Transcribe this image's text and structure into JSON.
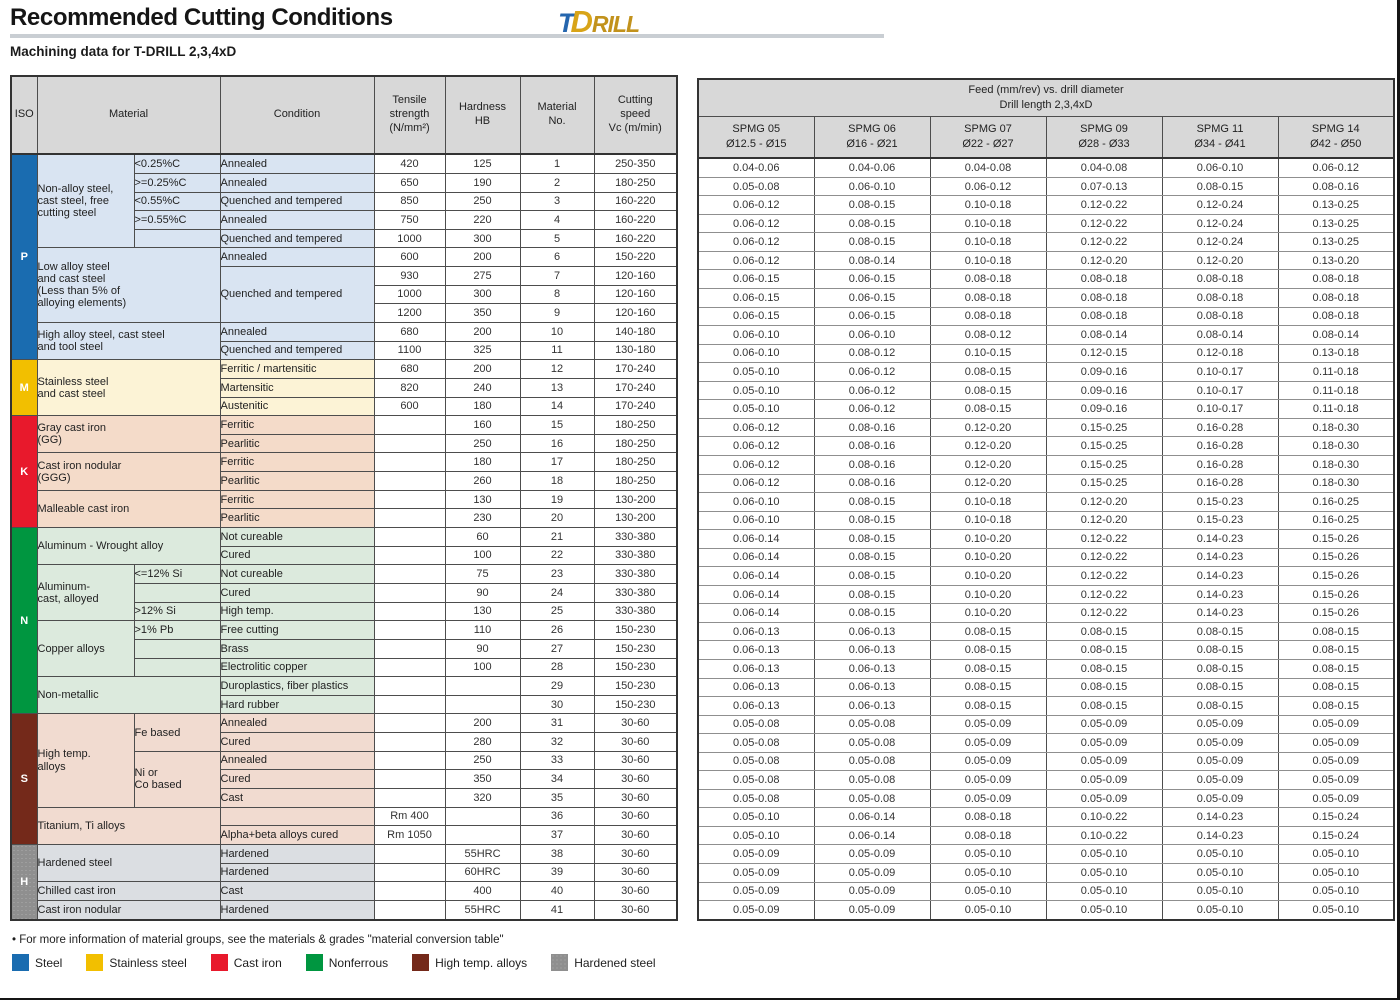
{
  "page": {
    "title": "Recommended Cutting Conditions",
    "subtitle": "Machining data for T-DRILL 2,3,4xD",
    "logo": {
      "t": "T",
      "d": "D",
      "rill": "RILL"
    },
    "footnote": "• For more information of material groups, see the materials & grades \"material conversion table\"",
    "legend": [
      {
        "label": "Steel",
        "color": "#1a6cb0"
      },
      {
        "label": "Stainless steel",
        "color": "#f2bf00"
      },
      {
        "label": "Cast iron",
        "color": "#e8192c"
      },
      {
        "label": "Nonferrous",
        "color": "#009640"
      },
      {
        "label": "High temp. alloys",
        "color": "#74291a"
      },
      {
        "label": "Hardened steel",
        "color": "#8f8f8f"
      }
    ]
  },
  "left_table": {
    "headers": {
      "iso": "ISO",
      "material": "Material",
      "condition": "Condition",
      "tensile": "Tensile\nstrength\n(N/mm²)",
      "hardness": "Hardness\nHB",
      "material_no": "Material\nNo.",
      "cutting_speed": "Cutting\nspeed\nVc (m/min)"
    },
    "sections": [
      {
        "iso": "P",
        "color": "#1a6cb0",
        "bg": "#d9e4f2",
        "groups": [
          {
            "name": "Non-alloy steel,\ncast steel, free\ncutting steel",
            "full_width": false,
            "rows": [
              {
                "sub": "<0.25%C",
                "cond": "Annealed",
                "ts": "420",
                "hb": "125",
                "no": "1",
                "vc": "250-350"
              },
              {
                "sub": ">=0.25%C",
                "cond": "Annealed",
                "ts": "650",
                "hb": "190",
                "no": "2",
                "vc": "180-250"
              },
              {
                "sub": "<0.55%C",
                "cond": "Quenched and tempered",
                "ts": "850",
                "hb": "250",
                "no": "3",
                "vc": "160-220"
              },
              {
                "sub": ">=0.55%C",
                "cond": "Annealed",
                "ts": "750",
                "hb": "220",
                "no": "4",
                "vc": "160-220"
              },
              {
                "sub": "",
                "cond": "Quenched and tempered",
                "ts": "1000",
                "hb": "300",
                "no": "5",
                "vc": "160-220"
              }
            ]
          },
          {
            "name": "Low alloy steel\nand cast steel\n(Less than 5% of\nalloying elements)",
            "full_width": true,
            "rows": [
              {
                "cond": "Annealed",
                "ts": "600",
                "hb": "200",
                "no": "6",
                "vc": "150-220"
              },
              {
                "cond": "Quenched and tempered",
                "cond_span": 3,
                "ts": "930",
                "hb": "275",
                "no": "7",
                "vc": "120-160"
              },
              {
                "cond": null,
                "ts": "1000",
                "hb": "300",
                "no": "8",
                "vc": "120-160"
              },
              {
                "cond": null,
                "ts": "1200",
                "hb": "350",
                "no": "9",
                "vc": "120-160"
              }
            ]
          },
          {
            "name": "High alloy steel, cast steel\nand tool steel",
            "full_width": true,
            "rows": [
              {
                "cond": "Annealed",
                "ts": "680",
                "hb": "200",
                "no": "10",
                "vc": "140-180"
              },
              {
                "cond": "Quenched and tempered",
                "ts": "1100",
                "hb": "325",
                "no": "11",
                "vc": "130-180"
              }
            ]
          }
        ]
      },
      {
        "iso": "M",
        "color": "#f2bf00",
        "bg": "#fcf3d6",
        "groups": [
          {
            "name": "Stainless steel\nand cast steel",
            "full_width": true,
            "rows": [
              {
                "cond": "Ferritic / martensitic",
                "ts": "680",
                "hb": "200",
                "no": "12",
                "vc": "170-240"
              },
              {
                "cond": "Martensitic",
                "ts": "820",
                "hb": "240",
                "no": "13",
                "vc": "170-240"
              },
              {
                "cond": "Austenitic",
                "ts": "600",
                "hb": "180",
                "no": "14",
                "vc": "170-240"
              }
            ]
          }
        ]
      },
      {
        "iso": "K",
        "color": "#e8192c",
        "bg": "#f4dbc9",
        "groups": [
          {
            "name": "Gray cast iron\n(GG)",
            "full_width": true,
            "rows": [
              {
                "cond": "Ferritic",
                "ts": "",
                "hb": "160",
                "no": "15",
                "vc": "180-250"
              },
              {
                "cond": "Pearlitic",
                "ts": "",
                "hb": "250",
                "no": "16",
                "vc": "180-250"
              }
            ]
          },
          {
            "name": "Cast iron nodular\n(GGG)",
            "full_width": true,
            "rows": [
              {
                "cond": "Ferritic",
                "ts": "",
                "hb": "180",
                "no": "17",
                "vc": "180-250"
              },
              {
                "cond": "Pearlitic",
                "ts": "",
                "hb": "260",
                "no": "18",
                "vc": "180-250"
              }
            ]
          },
          {
            "name": "Malleable cast iron",
            "full_width": true,
            "rows": [
              {
                "cond": "Ferritic",
                "ts": "",
                "hb": "130",
                "no": "19",
                "vc": "130-200"
              },
              {
                "cond": "Pearlitic",
                "ts": "",
                "hb": "230",
                "no": "20",
                "vc": "130-200"
              }
            ]
          }
        ]
      },
      {
        "iso": "N",
        "color": "#009640",
        "bg": "#dceadd",
        "groups": [
          {
            "name": "Aluminum - Wrought alloy",
            "full_width": true,
            "rows": [
              {
                "cond": "Not cureable",
                "ts": "",
                "hb": "60",
                "no": "21",
                "vc": "330-380"
              },
              {
                "cond": "Cured",
                "ts": "",
                "hb": "100",
                "no": "22",
                "vc": "330-380"
              }
            ]
          },
          {
            "name": "Aluminum-\ncast, alloyed",
            "full_width": false,
            "rows": [
              {
                "sub": "<=12% Si",
                "cond": "Not cureable",
                "ts": "",
                "hb": "75",
                "no": "23",
                "vc": "330-380"
              },
              {
                "sub": "",
                "cond": "Cured",
                "ts": "",
                "hb": "90",
                "no": "24",
                "vc": "330-380"
              },
              {
                "sub": ">12% Si",
                "cond": "High temp.",
                "ts": "",
                "hb": "130",
                "no": "25",
                "vc": "330-380"
              }
            ]
          },
          {
            "name": "Copper alloys",
            "full_width": false,
            "rows": [
              {
                "sub": ">1% Pb",
                "cond": "Free cutting",
                "ts": "",
                "hb": "110",
                "no": "26",
                "vc": "150-230"
              },
              {
                "sub": "",
                "cond": "Brass",
                "ts": "",
                "hb": "90",
                "no": "27",
                "vc": "150-230"
              },
              {
                "sub": "",
                "cond": "Electrolitic copper",
                "ts": "",
                "hb": "100",
                "no": "28",
                "vc": "150-230"
              }
            ]
          },
          {
            "name": "Non-metallic",
            "full_width": true,
            "rows": [
              {
                "cond": "Duroplastics, fiber plastics",
                "ts": "",
                "hb": "",
                "no": "29",
                "vc": "150-230"
              },
              {
                "cond": "Hard rubber",
                "ts": "",
                "hb": "",
                "no": "30",
                "vc": "150-230"
              }
            ]
          }
        ]
      },
      {
        "iso": "S",
        "color": "#74291a",
        "bg": "#f1dbd0",
        "groups": [
          {
            "name": "High temp.\nalloys",
            "full_width": false,
            "rows": [
              {
                "sub": "Fe based",
                "sub_span": 2,
                "cond": "Annealed",
                "ts": "",
                "hb": "200",
                "no": "31",
                "vc": "30-60"
              },
              {
                "sub": null,
                "cond": "Cured",
                "ts": "",
                "hb": "280",
                "no": "32",
                "vc": "30-60"
              },
              {
                "sub": "Ni or\nCo based",
                "sub_span": 3,
                "cond": "Annealed",
                "ts": "",
                "hb": "250",
                "no": "33",
                "vc": "30-60"
              },
              {
                "sub": null,
                "cond": "Cured",
                "ts": "",
                "hb": "350",
                "no": "34",
                "vc": "30-60"
              },
              {
                "sub": null,
                "cond": "Cast",
                "ts": "",
                "hb": "320",
                "no": "35",
                "vc": "30-60"
              }
            ]
          },
          {
            "name": "Titanium, Ti alloys",
            "full_width": true,
            "rows": [
              {
                "cond": "",
                "ts": "Rm 400",
                "hb": "",
                "no": "36",
                "vc": "30-60"
              },
              {
                "cond": "Alpha+beta alloys cured",
                "ts": "Rm 1050",
                "hb": "",
                "no": "37",
                "vc": "30-60"
              }
            ]
          }
        ]
      },
      {
        "iso": "H",
        "color": "#8f8f8f",
        "bg": "#dbdee2",
        "groups": [
          {
            "name": "Hardened steel",
            "full_width": true,
            "rows": [
              {
                "cond": "Hardened",
                "ts": "",
                "hb": "55HRC",
                "no": "38",
                "vc": "30-60"
              },
              {
                "cond": "Hardened",
                "ts": "",
                "hb": "60HRC",
                "no": "39",
                "vc": "30-60"
              }
            ]
          },
          {
            "name": "Chilled cast iron",
            "full_width": true,
            "rows": [
              {
                "cond": "Cast",
                "ts": "",
                "hb": "400",
                "no": "40",
                "vc": "30-60"
              }
            ]
          },
          {
            "name": "Cast iron nodular",
            "full_width": true,
            "rows": [
              {
                "cond": "Hardened",
                "ts": "",
                "hb": "55HRC",
                "no": "41",
                "vc": "30-60"
              }
            ]
          }
        ]
      }
    ]
  },
  "feed_table": {
    "title": "Feed (mm/rev) vs. drill diameter",
    "subtitle": "Drill length 2,3,4xD",
    "columns": [
      {
        "name": "SPMG 05",
        "range": "Ø12.5 - Ø15"
      },
      {
        "name": "SPMG 06",
        "range": "Ø16 - Ø21"
      },
      {
        "name": "SPMG 07",
        "range": "Ø22 - Ø27"
      },
      {
        "name": "SPMG 09",
        "range": "Ø28 - Ø33"
      },
      {
        "name": "SPMG 11",
        "range": "Ø34 - Ø41"
      },
      {
        "name": "SPMG 14",
        "range": "Ø42 - Ø50"
      }
    ],
    "rows": [
      [
        "0.04-0.06",
        "0.04-0.06",
        "0.04-0.08",
        "0.04-0.08",
        "0.06-0.10",
        "0.06-0.12"
      ],
      [
        "0.05-0.08",
        "0.06-0.10",
        "0.06-0.12",
        "0.07-0.13",
        "0.08-0.15",
        "0.08-0.16"
      ],
      [
        "0.06-0.12",
        "0.08-0.15",
        "0.10-0.18",
        "0.12-0.22",
        "0.12-0.24",
        "0.13-0.25"
      ],
      [
        "0.06-0.12",
        "0.08-0.15",
        "0.10-0.18",
        "0.12-0.22",
        "0.12-0.24",
        "0.13-0.25"
      ],
      [
        "0.06-0.12",
        "0.08-0.15",
        "0.10-0.18",
        "0.12-0.22",
        "0.12-0.24",
        "0.13-0.25"
      ],
      [
        "0.06-0.12",
        "0.08-0.14",
        "0.10-0.18",
        "0.12-0.20",
        "0.12-0.20",
        "0.13-0.20"
      ],
      [
        "0.06-0.15",
        "0.06-0.15",
        "0.08-0.18",
        "0.08-0.18",
        "0.08-0.18",
        "0.08-0.18"
      ],
      [
        "0.06-0.15",
        "0.06-0.15",
        "0.08-0.18",
        "0.08-0.18",
        "0.08-0.18",
        "0.08-0.18"
      ],
      [
        "0.06-0.15",
        "0.06-0.15",
        "0.08-0.18",
        "0.08-0.18",
        "0.08-0.18",
        "0.08-0.18"
      ],
      [
        "0.06-0.10",
        "0.06-0.10",
        "0.08-0.12",
        "0.08-0.14",
        "0.08-0.14",
        "0.08-0.14"
      ],
      [
        "0.06-0.10",
        "0.08-0.12",
        "0.10-0.15",
        "0.12-0.15",
        "0.12-0.18",
        "0.13-0.18"
      ],
      [
        "0.05-0.10",
        "0.06-0.12",
        "0.08-0.15",
        "0.09-0.16",
        "0.10-0.17",
        "0.11-0.18"
      ],
      [
        "0.05-0.10",
        "0.06-0.12",
        "0.08-0.15",
        "0.09-0.16",
        "0.10-0.17",
        "0.11-0.18"
      ],
      [
        "0.05-0.10",
        "0.06-0.12",
        "0.08-0.15",
        "0.09-0.16",
        "0.10-0.17",
        "0.11-0.18"
      ],
      [
        "0.06-0.12",
        "0.08-0.16",
        "0.12-0.20",
        "0.15-0.25",
        "0.16-0.28",
        "0.18-0.30"
      ],
      [
        "0.06-0.12",
        "0.08-0.16",
        "0.12-0.20",
        "0.15-0.25",
        "0.16-0.28",
        "0.18-0.30"
      ],
      [
        "0.06-0.12",
        "0.08-0.16",
        "0.12-0.20",
        "0.15-0.25",
        "0.16-0.28",
        "0.18-0.30"
      ],
      [
        "0.06-0.12",
        "0.08-0.16",
        "0.12-0.20",
        "0.15-0.25",
        "0.16-0.28",
        "0.18-0.30"
      ],
      [
        "0.06-0.10",
        "0.08-0.15",
        "0.10-0.18",
        "0.12-0.20",
        "0.15-0.23",
        "0.16-0.25"
      ],
      [
        "0.06-0.10",
        "0.08-0.15",
        "0.10-0.18",
        "0.12-0.20",
        "0.15-0.23",
        "0.16-0.25"
      ],
      [
        "0.06-0.14",
        "0.08-0.15",
        "0.10-0.20",
        "0.12-0.22",
        "0.14-0.23",
        "0.15-0.26"
      ],
      [
        "0.06-0.14",
        "0.08-0.15",
        "0.10-0.20",
        "0.12-0.22",
        "0.14-0.23",
        "0.15-0.26"
      ],
      [
        "0.06-0.14",
        "0.08-0.15",
        "0.10-0.20",
        "0.12-0.22",
        "0.14-0.23",
        "0.15-0.26"
      ],
      [
        "0.06-0.14",
        "0.08-0.15",
        "0.10-0.20",
        "0.12-0.22",
        "0.14-0.23",
        "0.15-0.26"
      ],
      [
        "0.06-0.14",
        "0.08-0.15",
        "0.10-0.20",
        "0.12-0.22",
        "0.14-0.23",
        "0.15-0.26"
      ],
      [
        "0.06-0.13",
        "0.06-0.13",
        "0.08-0.15",
        "0.08-0.15",
        "0.08-0.15",
        "0.08-0.15"
      ],
      [
        "0.06-0.13",
        "0.06-0.13",
        "0.08-0.15",
        "0.08-0.15",
        "0.08-0.15",
        "0.08-0.15"
      ],
      [
        "0.06-0.13",
        "0.06-0.13",
        "0.08-0.15",
        "0.08-0.15",
        "0.08-0.15",
        "0.08-0.15"
      ],
      [
        "0.06-0.13",
        "0.06-0.13",
        "0.08-0.15",
        "0.08-0.15",
        "0.08-0.15",
        "0.08-0.15"
      ],
      [
        "0.06-0.13",
        "0.06-0.13",
        "0.08-0.15",
        "0.08-0.15",
        "0.08-0.15",
        "0.08-0.15"
      ],
      [
        "0.05-0.08",
        "0.05-0.08",
        "0.05-0.09",
        "0.05-0.09",
        "0.05-0.09",
        "0.05-0.09"
      ],
      [
        "0.05-0.08",
        "0.05-0.08",
        "0.05-0.09",
        "0.05-0.09",
        "0.05-0.09",
        "0.05-0.09"
      ],
      [
        "0.05-0.08",
        "0.05-0.08",
        "0.05-0.09",
        "0.05-0.09",
        "0.05-0.09",
        "0.05-0.09"
      ],
      [
        "0.05-0.08",
        "0.05-0.08",
        "0.05-0.09",
        "0.05-0.09",
        "0.05-0.09",
        "0.05-0.09"
      ],
      [
        "0.05-0.08",
        "0.05-0.08",
        "0.05-0.09",
        "0.05-0.09",
        "0.05-0.09",
        "0.05-0.09"
      ],
      [
        "0.05-0.10",
        "0.06-0.14",
        "0.08-0.18",
        "0.10-0.22",
        "0.14-0.23",
        "0.15-0.24"
      ],
      [
        "0.05-0.10",
        "0.06-0.14",
        "0.08-0.18",
        "0.10-0.22",
        "0.14-0.23",
        "0.15-0.24"
      ],
      [
        "0.05-0.09",
        "0.05-0.09",
        "0.05-0.10",
        "0.05-0.10",
        "0.05-0.10",
        "0.05-0.10"
      ],
      [
        "0.05-0.09",
        "0.05-0.09",
        "0.05-0.10",
        "0.05-0.10",
        "0.05-0.10",
        "0.05-0.10"
      ],
      [
        "0.05-0.09",
        "0.05-0.09",
        "0.05-0.10",
        "0.05-0.10",
        "0.05-0.10",
        "0.05-0.10"
      ],
      [
        "0.05-0.09",
        "0.05-0.09",
        "0.05-0.10",
        "0.05-0.10",
        "0.05-0.10",
        "0.05-0.10"
      ]
    ]
  }
}
